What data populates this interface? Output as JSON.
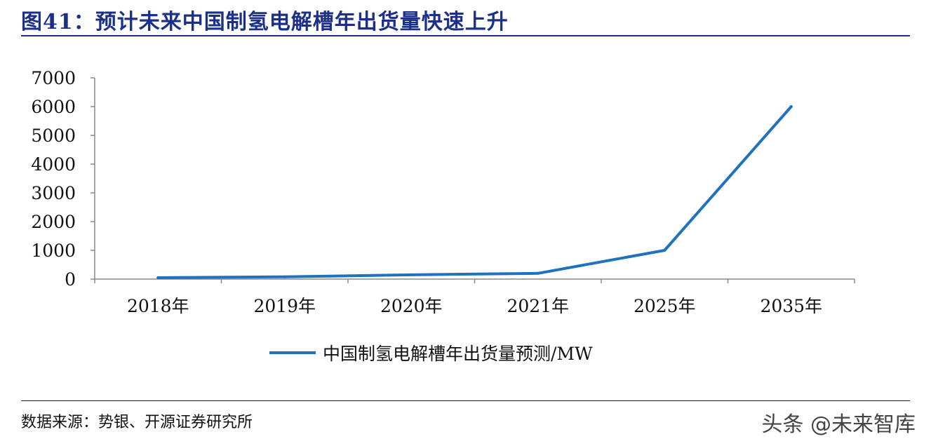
{
  "header": {
    "title": "图41：预计未来中国制氢电解槽年出货量快速上升"
  },
  "chart_data": {
    "type": "line",
    "categories": [
      "2018年",
      "2019年",
      "2020年",
      "2021年",
      "2025年",
      "2035年"
    ],
    "series": [
      {
        "name": "中国制氢电解槽年出货量预测/MW",
        "values": [
          50,
          80,
          150,
          200,
          1000,
          6000
        ],
        "color": "#1f72c0"
      }
    ],
    "ylim": [
      0,
      7000
    ],
    "yticks": [
      0,
      1000,
      2000,
      3000,
      4000,
      5000,
      6000,
      7000
    ],
    "grid": false,
    "legend": "bottom-center"
  },
  "footer": {
    "source": "数据来源：势银、开源证券研究所",
    "watermark": "头条 @未来智库"
  }
}
